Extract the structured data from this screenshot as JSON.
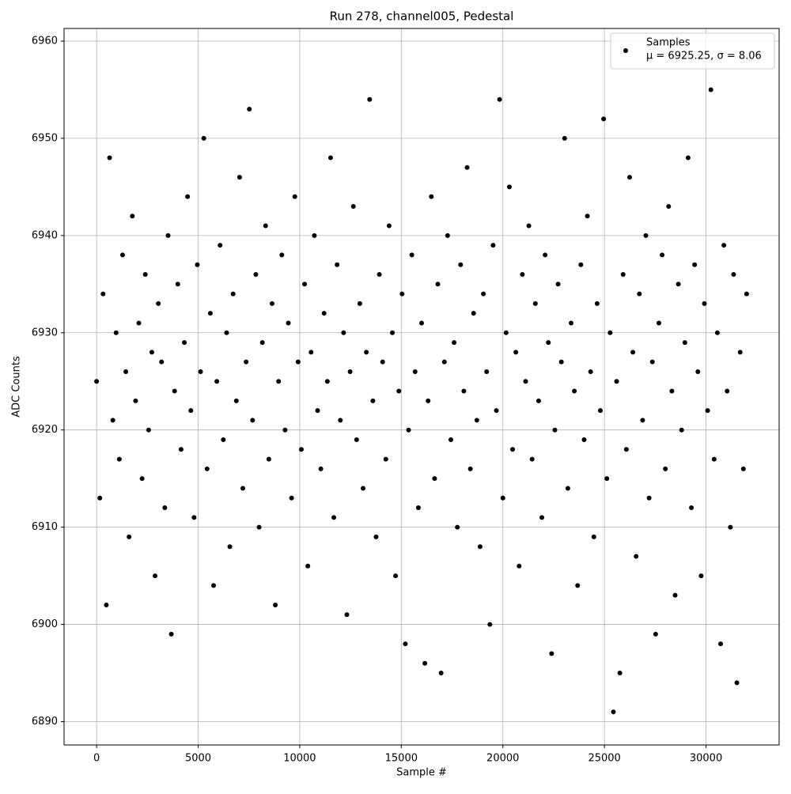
{
  "chart_data": {
    "type": "scatter",
    "title": "Run 278, channel005, Pedestal",
    "x_label": "Sample #",
    "y_label": "ADC Counts",
    "xlim": [
      -1600,
      33600
    ],
    "ylim": [
      6887.6,
      6961.3
    ],
    "xticks": [
      0,
      5000,
      10000,
      15000,
      20000,
      25000,
      30000
    ],
    "yticks": [
      6890,
      6900,
      6910,
      6920,
      6930,
      6940,
      6950,
      6960
    ],
    "grid": true,
    "legend": "upper right",
    "legend_note": "μ = 6925.25, σ = 8.06",
    "series": [
      {
        "name": "Samples",
        "color": "#000000",
        "x": [
          0,
          160,
          320,
          480,
          640,
          800,
          960,
          1120,
          1280,
          1440,
          1600,
          1760,
          1920,
          2080,
          2240,
          2400,
          2560,
          2720,
          2880,
          3040,
          3200,
          3360,
          3520,
          3680,
          3840,
          4000,
          4160,
          4320,
          4480,
          4640,
          4800,
          4960,
          5120,
          5280,
          5440,
          5600,
          5760,
          5920,
          6080,
          6240,
          6400,
          6560,
          6720,
          6880,
          7040,
          7200,
          7360,
          7520,
          7680,
          7840,
          8000,
          8160,
          8320,
          8480,
          8640,
          8800,
          8960,
          9120,
          9280,
          9440,
          9600,
          9760,
          9920,
          10080,
          10240,
          10400,
          10560,
          10720,
          10880,
          11040,
          11200,
          11360,
          11520,
          11680,
          11840,
          12000,
          12160,
          12320,
          12480,
          12640,
          12800,
          12960,
          13120,
          13280,
          13440,
          13600,
          13760,
          13920,
          14080,
          14240,
          14400,
          14560,
          14720,
          14880,
          15040,
          15200,
          15360,
          15520,
          15680,
          15840,
          16000,
          16160,
          16320,
          16480,
          16640,
          16800,
          16960,
          17120,
          17280,
          17440,
          17600,
          17760,
          17920,
          18080,
          18240,
          18400,
          18560,
          18720,
          18880,
          19040,
          19200,
          19360,
          19520,
          19680,
          19840,
          20000,
          20160,
          20320,
          20480,
          20640,
          20800,
          20960,
          21120,
          21280,
          21440,
          21600,
          21760,
          21920,
          22080,
          22240,
          22400,
          22560,
          22720,
          22880,
          23040,
          23200,
          23360,
          23520,
          23680,
          23840,
          24000,
          24160,
          24320,
          24480,
          24640,
          24800,
          24960,
          25120,
          25280,
          25440,
          25600,
          25760,
          25920,
          26080,
          26240,
          26400,
          26560,
          26720,
          26880,
          27040,
          27200,
          27360,
          27520,
          27680,
          27840,
          28000,
          28160,
          28320,
          28480,
          28640,
          28800,
          28960,
          29120,
          29280,
          29440,
          29600,
          29760,
          29920,
          30080,
          30240,
          30400,
          30560,
          30720,
          30880,
          31040,
          31200,
          31360,
          31520,
          31680,
          31840,
          32000
        ],
        "values": [
          6925,
          6913,
          6934,
          6902,
          6948,
          6921,
          6930,
          6917,
          6938,
          6926,
          6909,
          6942,
          6923,
          6931,
          6915,
          6936,
          6920,
          6928,
          6905,
          6933,
          6927,
          6912,
          6940,
          6899,
          6924,
          6935,
          6918,
          6929,
          6944,
          6922,
          6911,
          6937,
          6926,
          6950,
          6916,
          6932,
          6904,
          6925,
          6939,
          6919,
          6930,
          6908,
          6934,
          6923,
          6946,
          6914,
          6927,
          6953,
          6921,
          6936,
          6910,
          6929,
          6941,
          6917,
          6933,
          6902,
          6925,
          6938,
          6920,
          6931,
          6913,
          6944,
          6927,
          6918,
          6935,
          6906,
          6928,
          6940,
          6922,
          6916,
          6932,
          6925,
          6948,
          6911,
          6937,
          6921,
          6930,
          6901,
          6926,
          6943,
          6919,
          6933,
          6914,
          6928,
          6954,
          6923,
          6909,
          6936,
          6927,
          6917,
          6941,
          6930,
          6905,
          6924,
          6934,
          6898,
          6920,
          6938,
          6926,
          6912,
          6931,
          6896,
          6923,
          6944,
          6915,
          6935,
          6895,
          6927,
          6940,
          6919,
          6929,
          6910,
          6937,
          6924,
          6947,
          6916,
          6932,
          6921,
          6908,
          6934,
          6926,
          6900,
          6939,
          6922,
          6954,
          6913,
          6930,
          6945,
          6918,
          6928,
          6906,
          6936,
          6925,
          6941,
          6917,
          6933,
          6923,
          6911,
          6938,
          6929,
          6897,
          6920,
          6935,
          6927,
          6950,
          6914,
          6931,
          6924,
          6904,
          6937,
          6919,
          6942,
          6926,
          6909,
          6933,
          6922,
          6952,
          6915,
          6930,
          6891,
          6925,
          6895,
          6936,
          6918,
          6946,
          6928,
          6907,
          6934,
          6921,
          6940,
          6913,
          6927,
          6899,
          6931,
          6938,
          6916,
          6943,
          6924,
          6903,
          6935,
          6920,
          6929,
          6948,
          6912,
          6937,
          6926,
          6905,
          6933,
          6922,
          6955,
          6917,
          6930,
          6898,
          6939,
          6924,
          6910,
          6936,
          6894,
          6928,
          6916,
          6934
        ]
      }
    ]
  }
}
